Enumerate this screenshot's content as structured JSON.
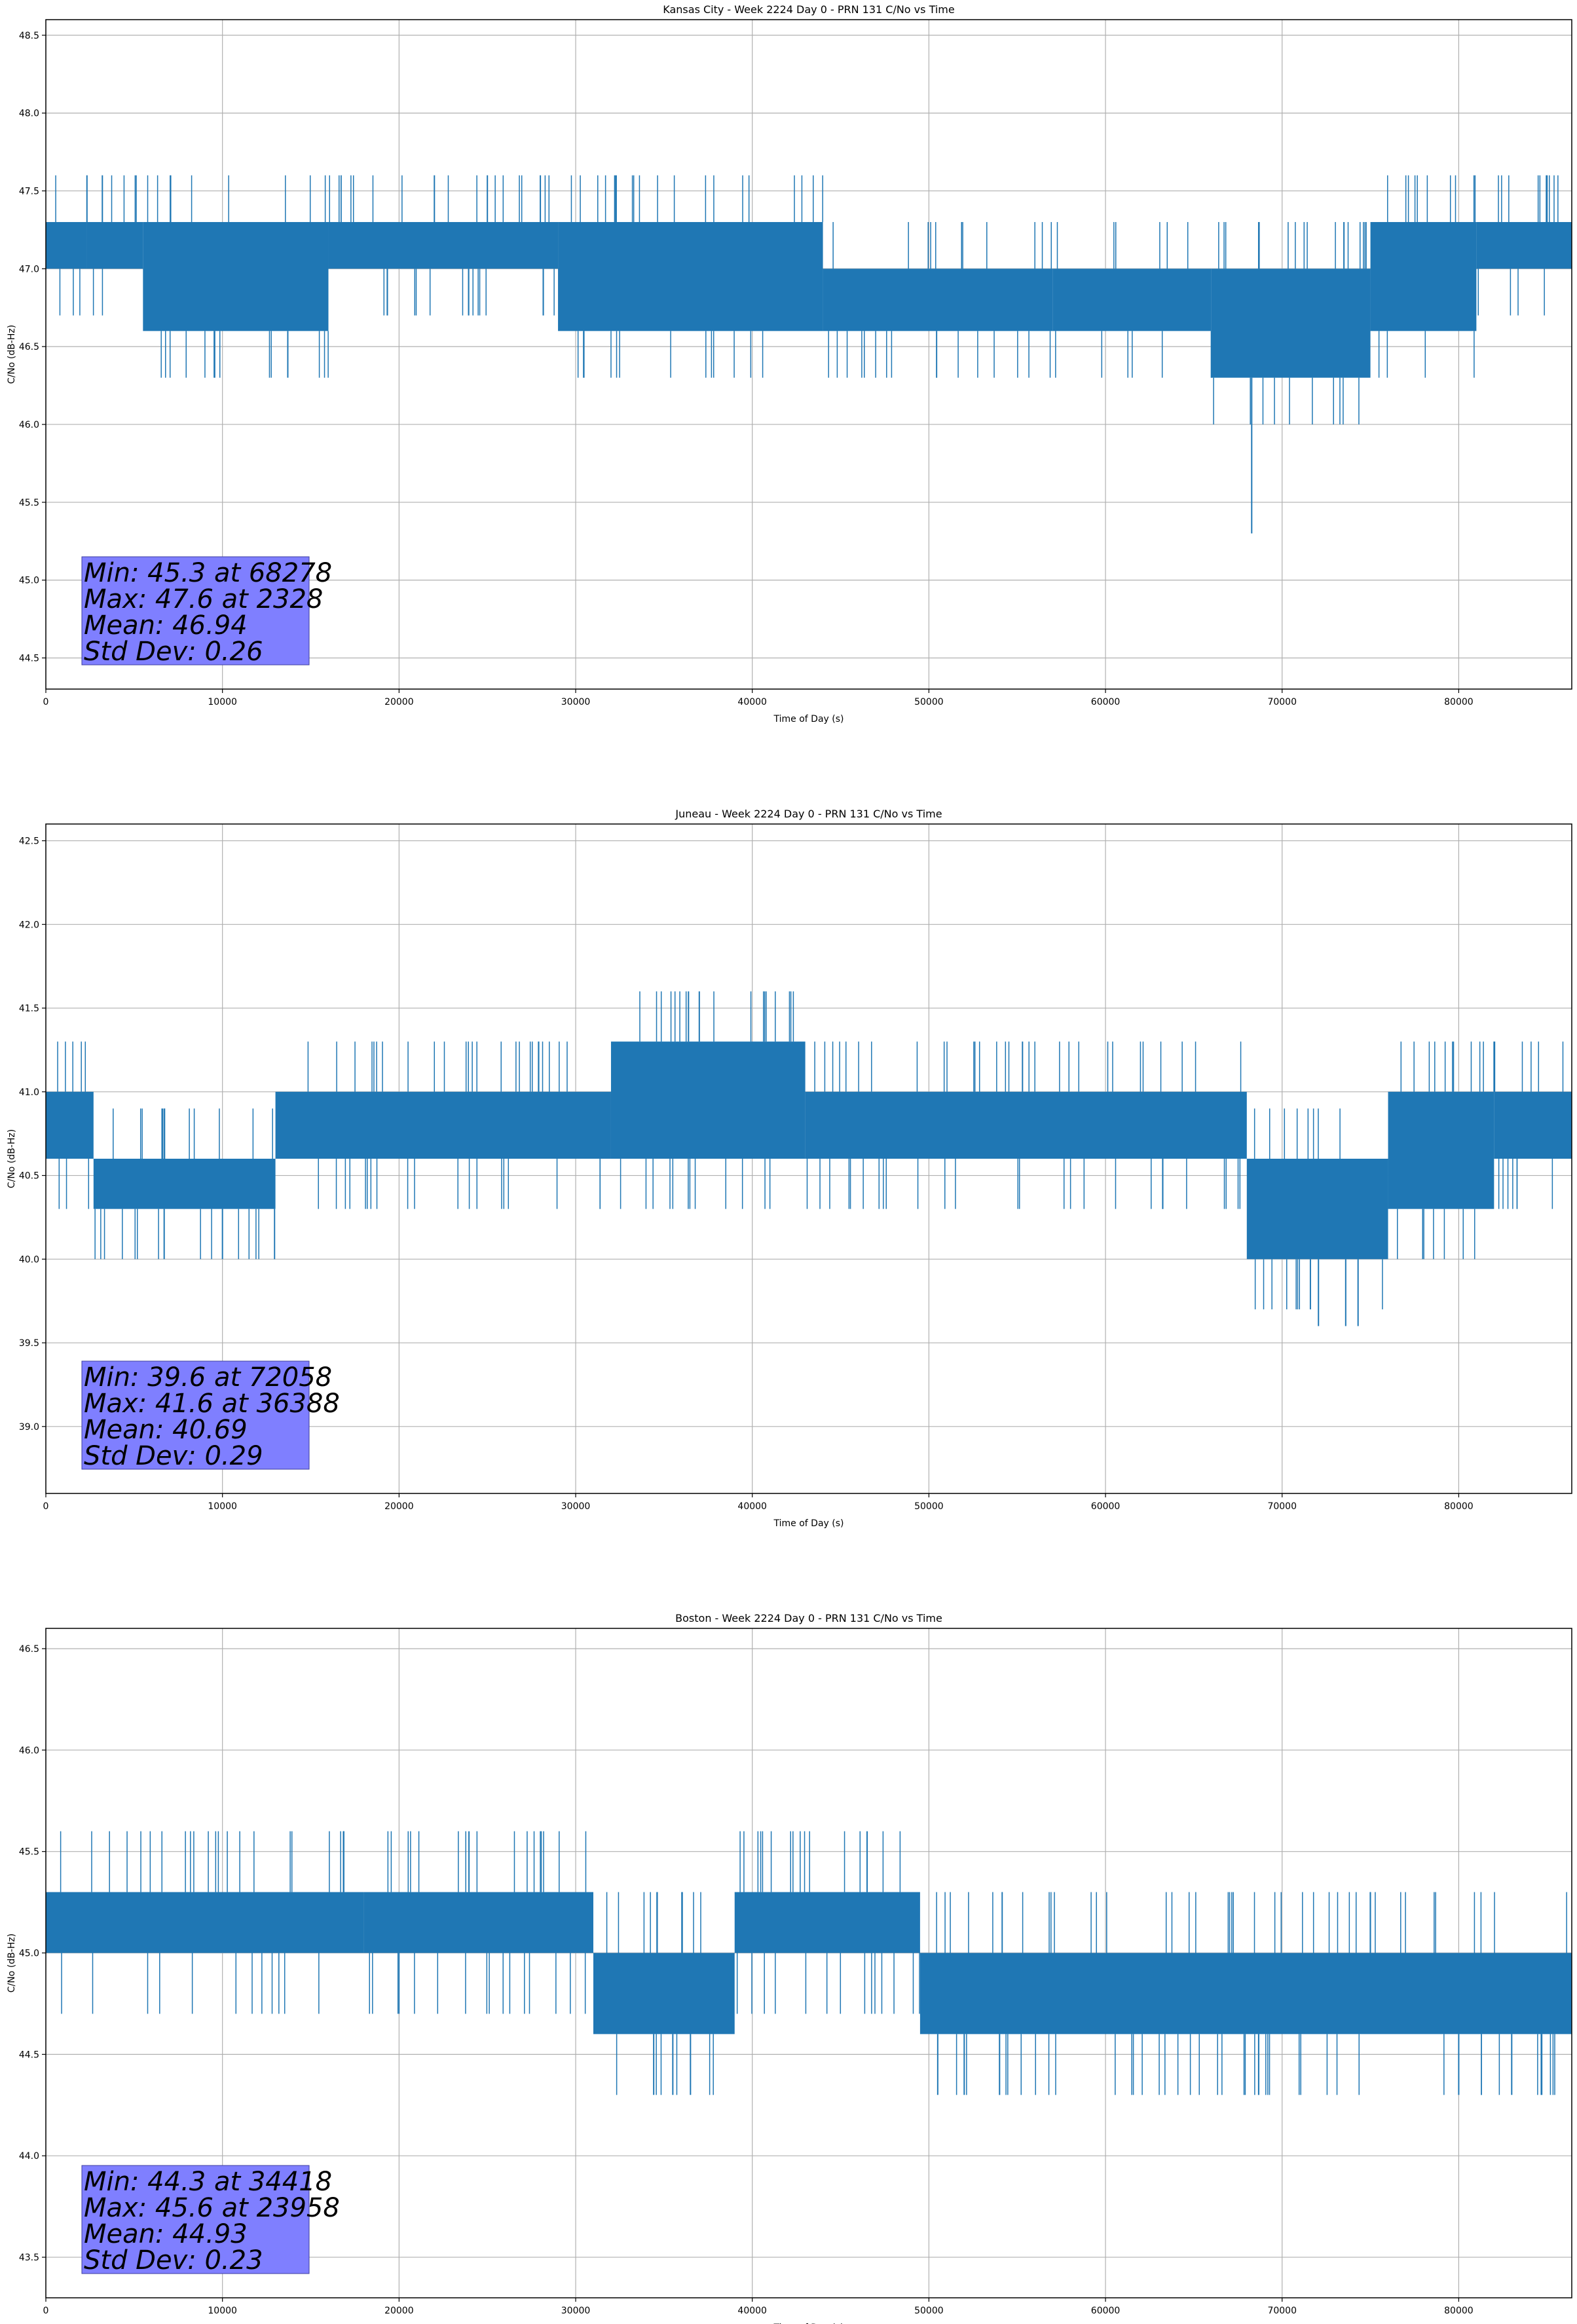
{
  "chart_data": [
    {
      "type": "line",
      "title": "Kansas City - Week 2224 Day 0 - PRN 131 C/No vs Time",
      "xlabel": "Time of Day (s)",
      "ylabel": "C/No (dB-Hz)",
      "xlim": [
        0,
        86400
      ],
      "ylim": [
        44.3,
        48.6
      ],
      "xticks": [
        0,
        10000,
        20000,
        30000,
        40000,
        50000,
        60000,
        70000,
        80000
      ],
      "yticks": [
        44.5,
        45.0,
        45.5,
        46.0,
        46.5,
        47.0,
        47.5,
        48.0,
        48.5
      ],
      "grid": true,
      "series": [
        {
          "color": "#1f77b4",
          "style": "step-band",
          "segments": [
            {
              "x": [
                0,
                2300
              ],
              "low": 47.0,
              "high": 47.3
            },
            {
              "x": [
                2300,
                5500
              ],
              "low": 47.0,
              "high": 47.3
            },
            {
              "x": [
                5500,
                16000
              ],
              "low": 46.6,
              "high": 47.3
            },
            {
              "x": [
                16000,
                29000
              ],
              "low": 47.0,
              "high": 47.3
            },
            {
              "x": [
                29000,
                44000
              ],
              "low": 46.6,
              "high": 47.3
            },
            {
              "x": [
                44000,
                57000
              ],
              "low": 46.6,
              "high": 47.0
            },
            {
              "x": [
                57000,
                66000
              ],
              "low": 46.6,
              "high": 47.0
            },
            {
              "x": [
                66000,
                75000
              ],
              "low": 46.3,
              "high": 47.0
            },
            {
              "x": [
                75000,
                81000
              ],
              "low": 46.6,
              "high": 47.3
            },
            {
              "x": [
                81000,
                86400
              ],
              "low": 47.0,
              "high": 47.3
            }
          ],
          "spikes": [
            [
              2328,
              47.6
            ],
            [
              3200,
              47.6
            ],
            [
              13700,
              46.3
            ],
            [
              22000,
              47.6
            ],
            [
              25000,
              47.6
            ],
            [
              28000,
              47.6
            ],
            [
              68278,
              45.3
            ],
            [
              73500,
              47.3
            ],
            [
              85000,
              47.6
            ]
          ]
        }
      ],
      "stats_box": {
        "min": "Min: 45.3 at 68278",
        "max": "Max: 47.6 at 2328",
        "mean": "Mean: 46.94",
        "std": "Std Dev: 0.26"
      }
    },
    {
      "type": "line",
      "title": "Juneau - Week 2224 Day 0 - PRN 131 C/No vs Time",
      "xlabel": "Time of Day (s)",
      "ylabel": "C/No (dB-Hz)",
      "xlim": [
        0,
        86400
      ],
      "ylim": [
        38.6,
        42.6
      ],
      "xticks": [
        0,
        10000,
        20000,
        30000,
        40000,
        50000,
        60000,
        70000,
        80000
      ],
      "yticks": [
        39.0,
        39.5,
        40.0,
        40.5,
        41.0,
        41.5,
        42.0,
        42.5
      ],
      "grid": true,
      "series": [
        {
          "color": "#1f77b4",
          "style": "step-band",
          "segments": [
            {
              "x": [
                0,
                2700
              ],
              "low": 40.6,
              "high": 41.0
            },
            {
              "x": [
                2700,
                13000
              ],
              "low": 40.3,
              "high": 40.6
            },
            {
              "x": [
                13000,
                32000
              ],
              "low": 40.6,
              "high": 41.0
            },
            {
              "x": [
                32000,
                43000
              ],
              "low": 40.6,
              "high": 41.3
            },
            {
              "x": [
                43000,
                68000
              ],
              "low": 40.6,
              "high": 41.0
            },
            {
              "x": [
                68000,
                76000
              ],
              "low": 40.0,
              "high": 40.6
            },
            {
              "x": [
                76000,
                82000
              ],
              "low": 40.3,
              "high": 41.0
            },
            {
              "x": [
                82000,
                86400
              ],
              "low": 40.6,
              "high": 41.0
            }
          ],
          "spikes": [
            [
              36388,
              41.6
            ],
            [
              37000,
              41.6
            ],
            [
              72058,
              39.6
            ],
            [
              73600,
              39.6
            ],
            [
              74300,
              39.6
            ],
            [
              6700,
              40.0
            ],
            [
              10000,
              40.0
            ],
            [
              55300,
              41.3
            ],
            [
              82000,
              41.3
            ]
          ]
        }
      ],
      "stats_box": {
        "min": "Min: 39.6 at 72058",
        "max": "Max: 41.6 at 36388",
        "mean": "Mean: 40.69",
        "std": "Std Dev: 0.29"
      }
    },
    {
      "type": "line",
      "title": "Boston - Week 2224 Day 0 - PRN 131 C/No vs Time",
      "xlabel": "Time of Day (s)",
      "ylabel": "C/No (dB-Hz)",
      "xlim": [
        0,
        86400
      ],
      "ylim": [
        43.3,
        46.6
      ],
      "xticks": [
        0,
        10000,
        20000,
        30000,
        40000,
        50000,
        60000,
        70000,
        80000
      ],
      "yticks": [
        43.5,
        44.0,
        44.5,
        45.0,
        45.5,
        46.0,
        46.5
      ],
      "grid": true,
      "series": [
        {
          "color": "#1f77b4",
          "style": "step-band",
          "segments": [
            {
              "x": [
                0,
                18000
              ],
              "low": 45.0,
              "high": 45.3
            },
            {
              "x": [
                18000,
                31000
              ],
              "low": 45.0,
              "high": 45.3
            },
            {
              "x": [
                31000,
                39000
              ],
              "low": 44.6,
              "high": 45.0
            },
            {
              "x": [
                39000,
                49500
              ],
              "low": 45.0,
              "high": 45.3
            },
            {
              "x": [
                49500,
                86400
              ],
              "low": 44.6,
              "high": 45.0
            }
          ],
          "spikes": [
            [
              23958,
              45.6
            ],
            [
              46500,
              45.6
            ],
            [
              34418,
              44.3
            ],
            [
              35500,
              44.3
            ],
            [
              36500,
              44.3
            ],
            [
              50500,
              44.3
            ],
            [
              52000,
              44.3
            ],
            [
              54000,
              44.3
            ],
            [
              80000,
              44.3
            ],
            [
              83000,
              44.3
            ]
          ]
        }
      ],
      "stats_box": {
        "min": "Min: 44.3 at 34418",
        "max": "Max: 45.6 at 23958",
        "mean": "Mean: 44.93",
        "std": "Std Dev: 0.23"
      }
    }
  ]
}
